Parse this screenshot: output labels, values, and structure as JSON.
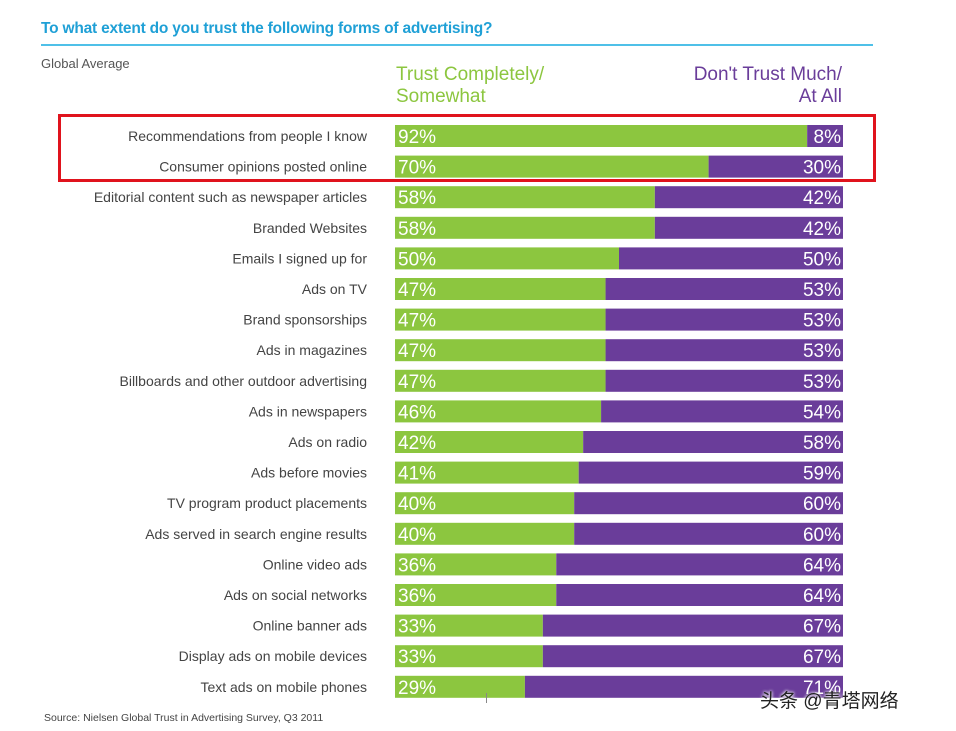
{
  "chart_data": {
    "type": "bar",
    "orientation": "horizontal",
    "stacked": true,
    "title": "To what extent do you trust the following forms of advertising?",
    "subtitle": "Global Average",
    "categories": [
      "Recommendations from people I know",
      "Consumer opinions posted online",
      "Editorial content such as newspaper articles",
      "Branded Websites",
      "Emails I signed up for",
      "Ads on TV",
      "Brand sponsorships",
      "Ads in magazines",
      "Billboards and other outdoor advertising",
      "Ads in newspapers",
      "Ads on radio",
      "Ads before movies",
      "TV program product placements",
      "Ads served in search engine results",
      "Online video ads",
      "Ads on social networks",
      "Online banner ads",
      "Display ads on mobile devices",
      "Text ads on mobile phones"
    ],
    "series": [
      {
        "name": "Trust Completely/\nSomewhat",
        "color": "#8cc63f",
        "values": [
          92,
          70,
          58,
          58,
          50,
          47,
          47,
          47,
          47,
          46,
          42,
          41,
          40,
          40,
          36,
          36,
          33,
          33,
          29
        ]
      },
      {
        "name": "Don't Trust Much/\nAt All",
        "color": "#6a3d9a",
        "values": [
          8,
          30,
          42,
          42,
          50,
          53,
          53,
          53,
          53,
          54,
          58,
          59,
          60,
          60,
          64,
          64,
          67,
          67,
          71
        ]
      }
    ],
    "value_suffix": "%",
    "xlim": [
      0,
      100
    ],
    "highlighted_categories": [
      "Recommendations from people I know",
      "Consumer opinions posted online"
    ],
    "source": "Source: Nielsen Global Trust in Advertising Survey, Q3 2011"
  },
  "watermark": "头条 @青塔网络"
}
